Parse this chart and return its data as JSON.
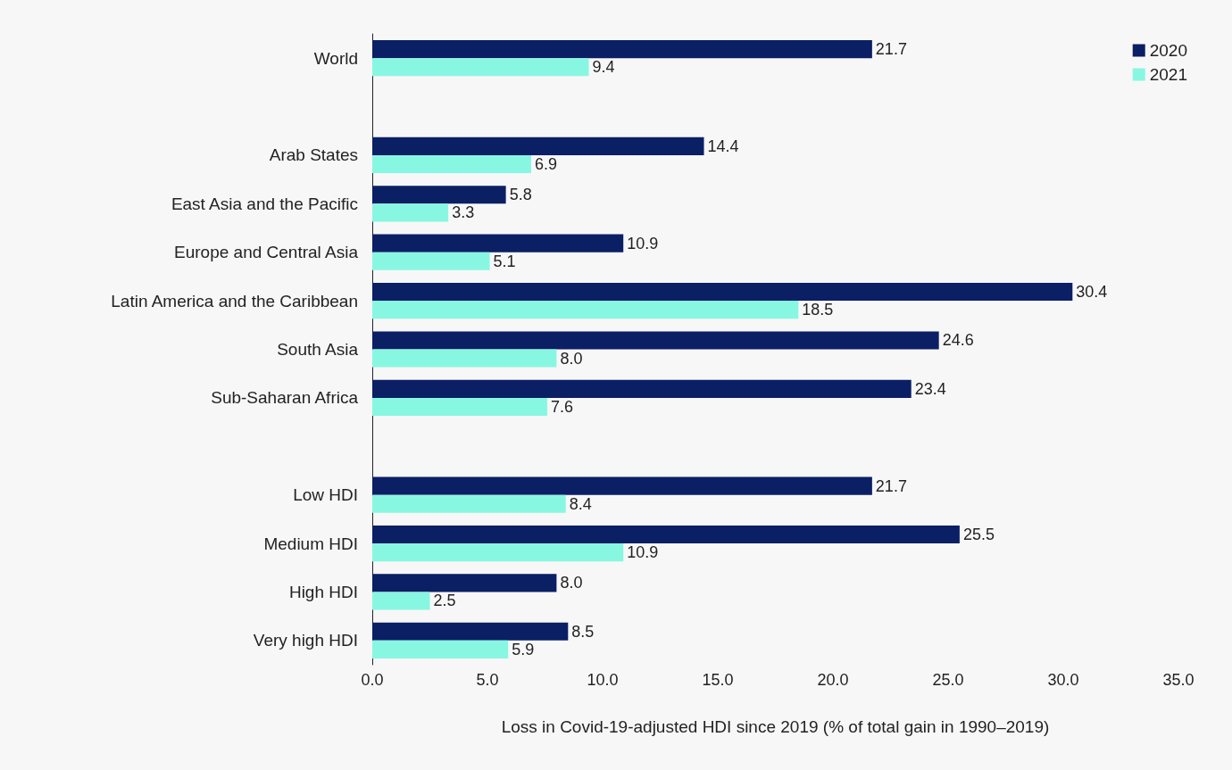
{
  "chart_data": {
    "type": "bar",
    "orientation": "horizontal",
    "xlabel": "Loss in Covid-19-adjusted HDI since 2019 (% of total gain in 1990–2019)",
    "categories": [
      "World",
      null,
      "Arab States",
      "East Asia and the Pacific",
      "Europe and Central Asia",
      "Latin America and the Caribbean",
      "South Asia",
      "Sub-Saharan Africa",
      null,
      "Low HDI",
      "Medium HDI",
      "High HDI",
      "Very high HDI"
    ],
    "series": [
      {
        "name": "2020",
        "color": "#0b1f65",
        "values": [
          21.7,
          null,
          14.4,
          5.8,
          10.9,
          30.4,
          24.6,
          23.4,
          null,
          21.7,
          25.5,
          8.0,
          8.5
        ],
        "value_labels": [
          "21.7",
          null,
          "14.4",
          "5.8",
          "10.9",
          "30.4",
          "24.6",
          "23.4",
          null,
          "21.7",
          "25.5",
          "8.0",
          "8.5"
        ]
      },
      {
        "name": "2021",
        "color": "#88f7e2",
        "values": [
          9.4,
          null,
          6.9,
          3.3,
          5.1,
          18.5,
          8.0,
          7.6,
          null,
          8.4,
          10.9,
          2.5,
          5.9
        ],
        "value_labels": [
          "9.4",
          null,
          "6.9",
          "3.3",
          "5.1",
          "18.5",
          "8.0",
          "7.6",
          null,
          "8.4",
          "10.9",
          "2.5",
          "5.9"
        ]
      }
    ],
    "xlim": [
      0,
      35
    ],
    "xticks": [
      {
        "value": 0,
        "label": "0.0"
      },
      {
        "value": 5,
        "label": "5.0"
      },
      {
        "value": 10,
        "label": "10.0"
      },
      {
        "value": 15,
        "label": "15.0"
      },
      {
        "value": 20,
        "label": "20.0"
      },
      {
        "value": 25,
        "label": "25.0"
      },
      {
        "value": 30,
        "label": "30.0"
      },
      {
        "value": 35,
        "label": "35.0"
      }
    ],
    "grid": false,
    "legend": "top right"
  }
}
